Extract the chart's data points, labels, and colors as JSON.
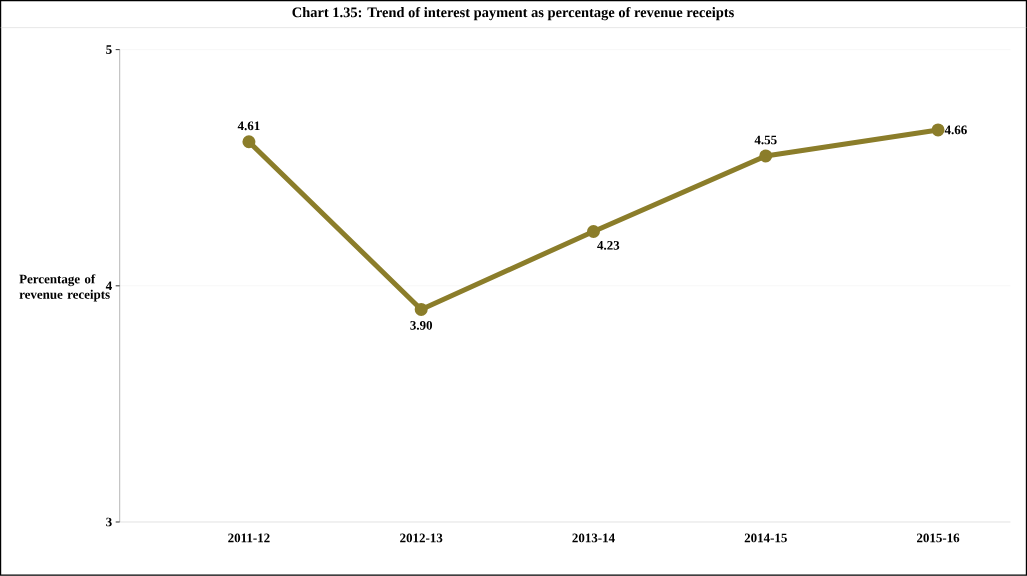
{
  "chart_data": {
    "type": "line",
    "title": "Chart 1.35: Trend of interest payment as percentage of revenue receipts",
    "ylabel": "Percentage of revenue receipts",
    "categories": [
      "2011-12",
      "2012-13",
      "2013-14",
      "2014-15",
      "2015-16"
    ],
    "values": [
      4.61,
      3.9,
      4.23,
      4.55,
      4.66
    ],
    "value_labels": [
      "4.61",
      "3.90",
      "4.23",
      "4.55",
      "4.66"
    ],
    "color": "#8b7d2a",
    "marker": "circle",
    "line_style": "solid",
    "ylim": [
      3,
      5
    ],
    "yticks": [
      3,
      4,
      5
    ],
    "grid": "y"
  }
}
